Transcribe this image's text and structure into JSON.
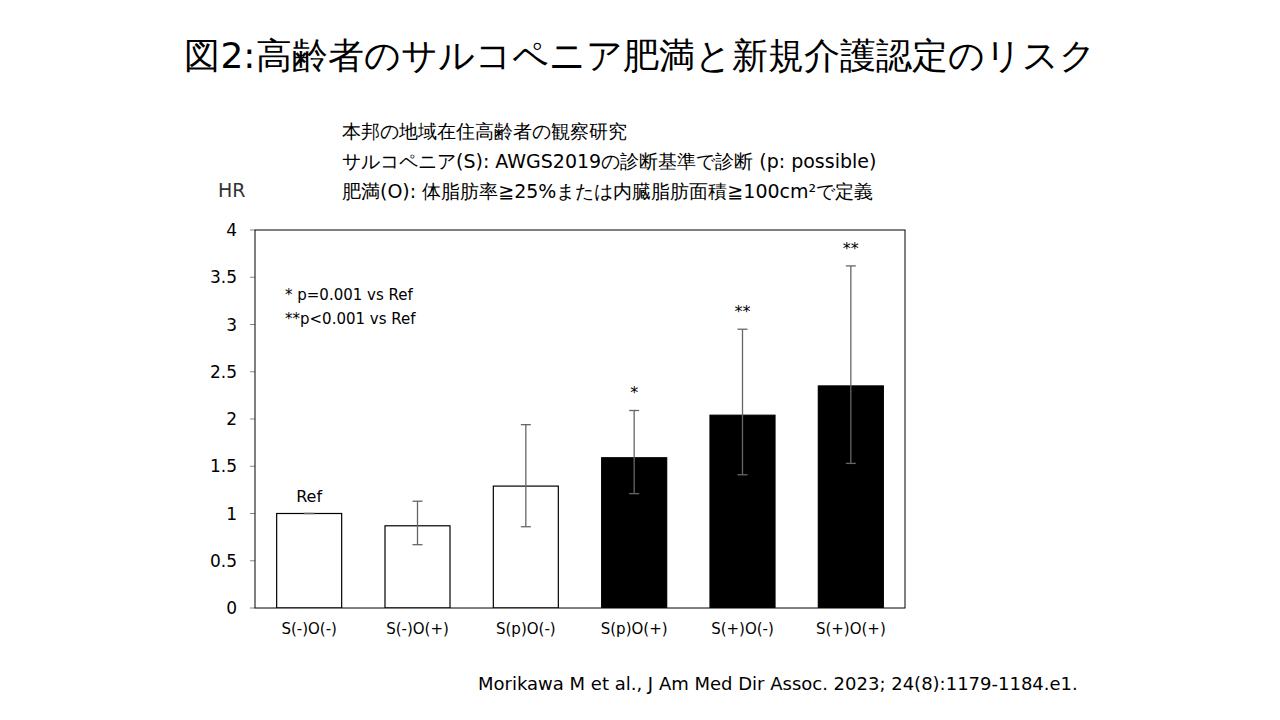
{
  "chart_data": {
    "type": "bar",
    "title": "図2:高齢者のサルコペニア肥満と新規介護認定のリスク",
    "subtitle": [
      "本邦の地域在住高齢者の観察研究",
      "サルコペニア(S): AWGS2019の診断基準で診断 (p: possible)",
      "肥満(O): 体脂肪率≧25%または内臓脂肪面積≧100cm²で定義"
    ],
    "ylabel": "HR",
    "notes": [
      "* p=0.001 vs Ref",
      "**p<0.001 vs Ref"
    ],
    "source": "Morikawa M et al., J Am Med Dir Assoc. 2023; 24(8):1179-1184.e1.",
    "categories": [
      "S(-)O(-)",
      "S(-)O(+)",
      "S(p)O(-)",
      "S(p)O(+)",
      "S(+)O(-)",
      "S(+)O(+)"
    ],
    "values": [
      1.0,
      0.87,
      1.29,
      1.59,
      2.04,
      2.35
    ],
    "ci_lower": [
      1.0,
      0.67,
      0.86,
      1.21,
      1.41,
      1.53
    ],
    "ci_upper": [
      1.0,
      1.13,
      1.94,
      2.09,
      2.95,
      3.62
    ],
    "annotations": [
      "Ref",
      null,
      null,
      "*",
      "**",
      "**"
    ],
    "colors": [
      "#ffffff",
      "#ffffff",
      "#ffffff",
      "#000000",
      "#000000",
      "#000000"
    ],
    "ylim": [
      0,
      4
    ],
    "yticks": [
      0,
      0.5,
      1,
      1.5,
      2,
      2.5,
      3,
      3.5,
      4
    ],
    "grid": false
  }
}
